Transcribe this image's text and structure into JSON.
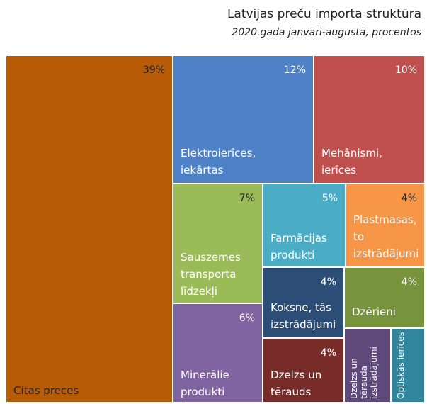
{
  "chart_data": {
    "type": "treemap",
    "title": "Latvijas preču importa struktūra",
    "subtitle": "2020.gada janvārī-augustā, procentos",
    "categories": [
      "Citas preces",
      "Elektroierīces, iekārtas",
      "Mehānismi, ierīces",
      "Sauszemes transporta līdzekļi",
      "Farmācijas produkti",
      "Plastmasas, to izstrādājumi",
      "Koksne, tās izstrādājumi",
      "Dzērieni",
      "Minerālie produkti",
      "Dzelzs un tērauds",
      "Dzelzs un tērauda izstrādājumi",
      "Optiskās ierīces"
    ],
    "values": [
      39,
      12,
      10,
      7,
      5,
      4,
      4,
      4,
      6,
      4,
      2,
      2
    ],
    "value_labels": [
      "39%",
      "12%",
      "10%",
      "7%",
      "5%",
      "4%",
      "4%",
      "4%",
      "6%",
      "4%",
      null,
      null
    ],
    "colors": [
      "#b85b07",
      "#4f81c7",
      "#c0504d",
      "#9bbb59",
      "#4bacc6",
      "#f79646",
      "#2c4d75",
      "#77933c",
      "#8064a2",
      "#772c2a",
      "#5f497a",
      "#31859c"
    ]
  }
}
